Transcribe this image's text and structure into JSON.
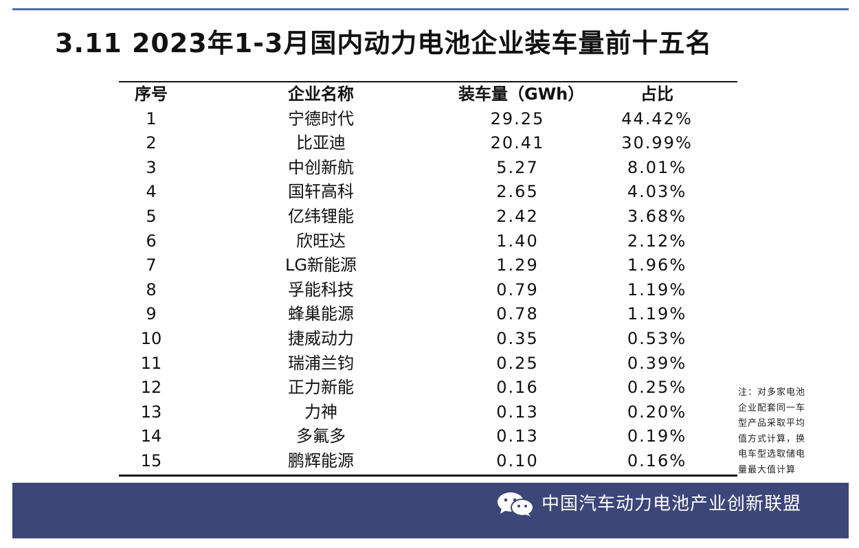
{
  "header": {
    "title": "3.11  2023年1-3月国内动力电池企业装车量前十五名"
  },
  "table": {
    "columns": [
      "序号",
      "企业名称",
      "装车量（GWh）",
      "占比"
    ],
    "rows": [
      {
        "rank": "1",
        "company": "宁德时代",
        "volume": "29.25",
        "share": "44.42%"
      },
      {
        "rank": "2",
        "company": "比亚迪",
        "volume": "20.41",
        "share": "30.99%"
      },
      {
        "rank": "3",
        "company": "中创新航",
        "volume": "5.27",
        "share": "8.01%"
      },
      {
        "rank": "4",
        "company": "国轩高科",
        "volume": "2.65",
        "share": "4.03%"
      },
      {
        "rank": "5",
        "company": "亿纬锂能",
        "volume": "2.42",
        "share": "3.68%"
      },
      {
        "rank": "6",
        "company": "欣旺达",
        "volume": "1.40",
        "share": "2.12%"
      },
      {
        "rank": "7",
        "company": "LG新能源",
        "volume": "1.29",
        "share": "1.96%"
      },
      {
        "rank": "8",
        "company": "孚能科技",
        "volume": "0.79",
        "share": "1.19%"
      },
      {
        "rank": "9",
        "company": "蜂巢能源",
        "volume": "0.78",
        "share": "1.19%"
      },
      {
        "rank": "10",
        "company": "捷威动力",
        "volume": "0.35",
        "share": "0.53%"
      },
      {
        "rank": "11",
        "company": "瑞浦兰钧",
        "volume": "0.25",
        "share": "0.39%"
      },
      {
        "rank": "12",
        "company": "正力新能",
        "volume": "0.16",
        "share": "0.25%"
      },
      {
        "rank": "13",
        "company": "力神",
        "volume": "0.13",
        "share": "0.20%"
      },
      {
        "rank": "14",
        "company": "多氟多",
        "volume": "0.13",
        "share": "0.19%"
      },
      {
        "rank": "15",
        "company": "鹏辉能源",
        "volume": "0.10",
        "share": "0.16%"
      }
    ]
  },
  "note": {
    "lines": [
      "注：对多家电池",
      "企业配套同一车",
      "型产品采取平均",
      "值方式计算，换",
      "电车型选取储电",
      "量最大值计算"
    ]
  },
  "footer": {
    "icon": "wechat-icon",
    "text": "中国汽车动力电池产业创新联盟"
  },
  "colors": {
    "accent_rule": "#4a6bb4",
    "footer_bg": "#3d4679",
    "footer_text": "#ffffff"
  }
}
